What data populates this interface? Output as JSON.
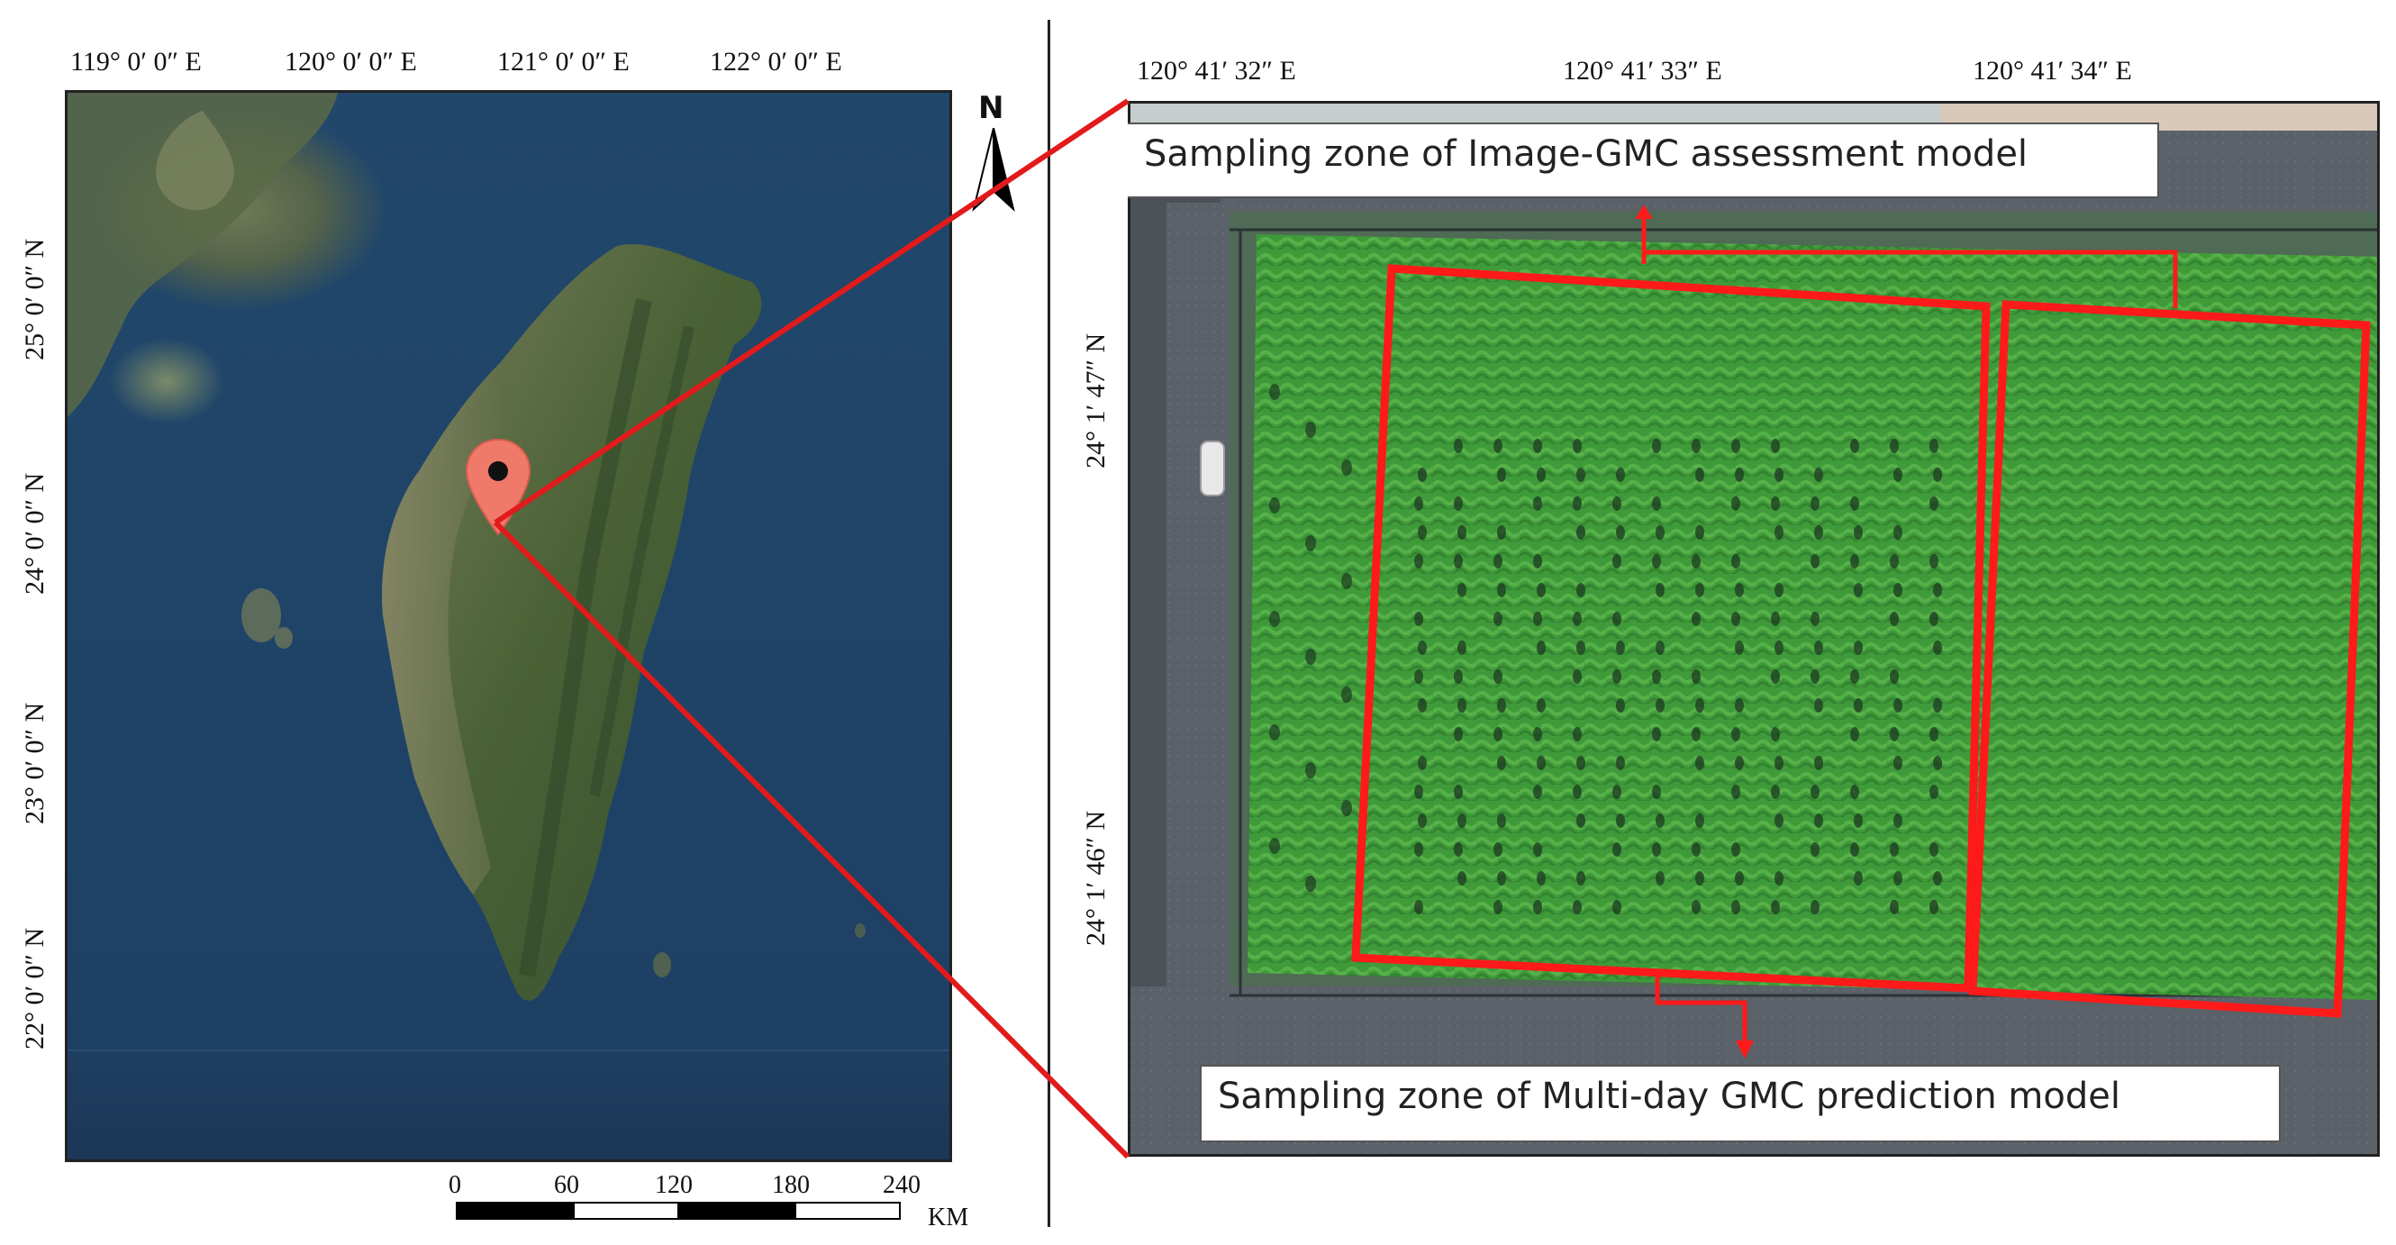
{
  "left_map": {
    "top_longitude_labels": [
      "119° 0′ 0″ E",
      "120° 0′ 0″ E",
      "121° 0′ 0″ E",
      "122° 0′ 0″ E"
    ],
    "left_latitude_labels": [
      "25° 0′ 0″ N",
      "24° 0′ 0″ N",
      "23° 0′ 0″ N",
      "22° 0′ 0″ N"
    ],
    "north_arrow_label": "N",
    "scale_bar": {
      "ticks": [
        "0",
        "60",
        "120",
        "180",
        "240"
      ],
      "unit": "KM"
    },
    "location_marker_icon": "map-pin-icon",
    "colors": {
      "sea": "#21476b",
      "land": "#4e5f3a",
      "marker": "#f07a6a"
    }
  },
  "right_map": {
    "top_longitude_labels": [
      "120° 41′ 32″ E",
      "120° 41′ 33″ E",
      "120° 41′ 34″ E"
    ],
    "left_latitude_labels": [
      "24° 1′ 47″ N",
      "24° 1′ 46″ N"
    ],
    "zone_label_top": "Sampling zone of Image-GMC assessment model",
    "zone_label_bottom": "Sampling zone of Multi-day GMC prediction model",
    "colors": {
      "field": "#3f9a3a",
      "zone_outline": "#ff1a1a",
      "road": "#5b6168"
    }
  },
  "connector_color": "#e11b1b"
}
